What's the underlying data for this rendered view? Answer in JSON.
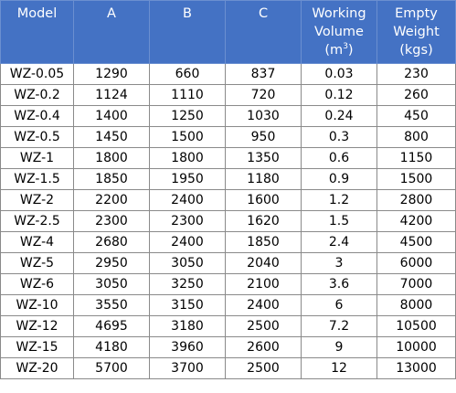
{
  "headers": {
    "model": "Model",
    "a": "A",
    "b": "B",
    "c": "C",
    "volume_line1": "Working",
    "volume_line2": "Volume",
    "volume_unit_open": "(m",
    "volume_unit_exp": "3",
    "volume_unit_close": ")",
    "weight_line1": "Empty",
    "weight_line2": "Weight",
    "weight_unit": "(kgs)"
  },
  "rows": [
    {
      "model": "WZ-0.05",
      "a": "1290",
      "b": "660",
      "c": "837",
      "volume": "0.03",
      "weight": "230"
    },
    {
      "model": "WZ-0.2",
      "a": "1124",
      "b": "1110",
      "c": "720",
      "volume": "0.12",
      "weight": "260"
    },
    {
      "model": "WZ-0.4",
      "a": "1400",
      "b": "1250",
      "c": "1030",
      "volume": "0.24",
      "weight": "450"
    },
    {
      "model": "WZ-0.5",
      "a": "1450",
      "b": "1500",
      "c": "950",
      "volume": "0.3",
      "weight": "800"
    },
    {
      "model": "WZ-1",
      "a": "1800",
      "b": "1800",
      "c": "1350",
      "volume": "0.6",
      "weight": "1150"
    },
    {
      "model": "WZ-1.5",
      "a": "1850",
      "b": "1950",
      "c": "1180",
      "volume": "0.9",
      "weight": "1500"
    },
    {
      "model": "WZ-2",
      "a": "2200",
      "b": "2400",
      "c": "1600",
      "volume": "1.2",
      "weight": "2800"
    },
    {
      "model": "WZ-2.5",
      "a": "2300",
      "b": "2300",
      "c": "1620",
      "volume": "1.5",
      "weight": "4200"
    },
    {
      "model": "WZ-4",
      "a": "2680",
      "b": "2400",
      "c": "1850",
      "volume": "2.4",
      "weight": "4500"
    },
    {
      "model": "WZ-5",
      "a": "2950",
      "b": "3050",
      "c": "2040",
      "volume": "3",
      "weight": "6000"
    },
    {
      "model": "WZ-6",
      "a": "3050",
      "b": "3250",
      "c": "2100",
      "volume": "3.6",
      "weight": "7000"
    },
    {
      "model": "WZ-10",
      "a": "3550",
      "b": "3150",
      "c": "2400",
      "volume": "6",
      "weight": "8000"
    },
    {
      "model": "WZ-12",
      "a": "4695",
      "b": "3180",
      "c": "2500",
      "volume": "7.2",
      "weight": "10500"
    },
    {
      "model": "WZ-15",
      "a": "4180",
      "b": "3960",
      "c": "2600",
      "volume": "9",
      "weight": "10000"
    },
    {
      "model": "WZ-20",
      "a": "5700",
      "b": "3700",
      "c": "2500",
      "volume": "12",
      "weight": "13000"
    }
  ]
}
